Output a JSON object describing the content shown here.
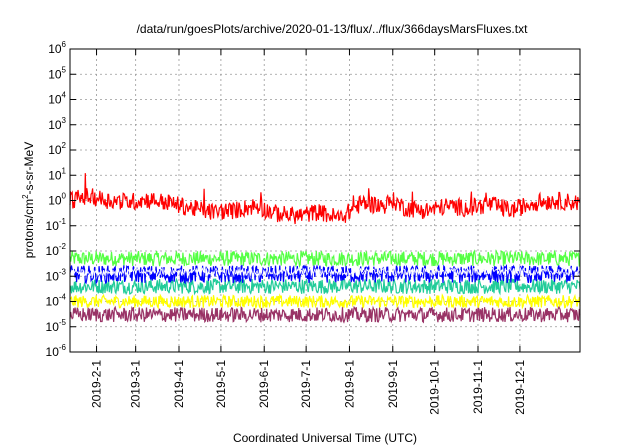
{
  "chart_data": {
    "type": "line",
    "title": "/data/run/goesPlots/archive/2020-01-13/flux/../flux/366daysMarsFluxes.txt",
    "xlabel": "Coordinated Universal Time (UTC)",
    "ylabel_pre": "protons/cm",
    "ylabel_sup": "2",
    "ylabel_post": "-s-sr-MeV",
    "y_scale": "log",
    "ylim": [
      1e-06,
      1000000.0
    ],
    "xlim": [
      "2019-01-13",
      "2020-01-13"
    ],
    "grid": true,
    "y_ticks": [
      {
        "base": "10",
        "exp": "-6",
        "value": 1e-06
      },
      {
        "base": "10",
        "exp": "-5",
        "value": 1e-05
      },
      {
        "base": "10",
        "exp": "-4",
        "value": 0.0001
      },
      {
        "base": "10",
        "exp": "-3",
        "value": 0.001
      },
      {
        "base": "10",
        "exp": "-2",
        "value": 0.01
      },
      {
        "base": "10",
        "exp": "-1",
        "value": 0.1
      },
      {
        "base": "10",
        "exp": "0",
        "value": 1
      },
      {
        "base": "10",
        "exp": "1",
        "value": 10.0
      },
      {
        "base": "10",
        "exp": "2",
        "value": 100.0
      },
      {
        "base": "10",
        "exp": "3",
        "value": 1000.0
      },
      {
        "base": "10",
        "exp": "4",
        "value": 10000.0
      },
      {
        "base": "10",
        "exp": "5",
        "value": 100000.0
      },
      {
        "base": "10",
        "exp": "6",
        "value": 1000000.0
      }
    ],
    "x_ticks": [
      {
        "label": "2019-2-1",
        "date": "2019-02-01"
      },
      {
        "label": "2019-3-1",
        "date": "2019-03-01"
      },
      {
        "label": "2019-4-1",
        "date": "2019-04-01"
      },
      {
        "label": "2019-5-1",
        "date": "2019-05-01"
      },
      {
        "label": "2019-6-1",
        "date": "2019-06-01"
      },
      {
        "label": "2019-7-1",
        "date": "2019-07-01"
      },
      {
        "label": "2019-8-1",
        "date": "2019-08-01"
      },
      {
        "label": "2019-9-1",
        "date": "2019-09-01"
      },
      {
        "label": "2019-10-1",
        "date": "2019-10-01"
      },
      {
        "label": "2019-11-1",
        "date": "2019-11-01"
      },
      {
        "label": "2019-12-1",
        "date": "2019-12-01"
      }
    ],
    "series": [
      {
        "color": "#55ff44",
        "x": [
          "2019-01-13",
          "2019-03-01",
          "2019-05-01",
          "2019-07-01",
          "2019-09-01",
          "2019-11-01",
          "2020-01-13"
        ],
        "y": [
          0.005,
          0.005,
          0.005,
          0.005,
          0.005,
          0.005,
          0.005
        ]
      },
      {
        "color": "#22cc99",
        "x": [
          "2019-01-13",
          "2019-03-01",
          "2019-05-01",
          "2019-07-01",
          "2019-09-01",
          "2019-11-01",
          "2020-01-13"
        ],
        "y": [
          0.0004,
          0.0004,
          0.0004,
          0.0004,
          0.0004,
          0.0004,
          0.0004
        ]
      },
      {
        "color": "#ffff00",
        "x": [
          "2019-01-13",
          "2019-03-01",
          "2019-05-01",
          "2019-07-01",
          "2019-09-01",
          "2019-11-01",
          "2020-01-13"
        ],
        "y": [
          0.0001,
          0.0001,
          0.0001,
          0.0001,
          0.0001,
          0.0001,
          0.0001
        ]
      },
      {
        "color": "#0000ff",
        "x": [
          "2019-01-13",
          "2019-03-01",
          "2019-05-01",
          "2019-07-01",
          "2019-09-01",
          "2019-11-01",
          "2020-01-13"
        ],
        "y": [
          0.0012,
          0.0012,
          0.0012,
          0.0012,
          0.0012,
          0.0012,
          0.0012
        ]
      },
      {
        "color": "#ffffff",
        "x": [
          "2019-01-13",
          "2019-03-01",
          "2019-05-01",
          "2019-07-01",
          "2019-09-01",
          "2019-11-01",
          "2020-01-13"
        ],
        "y": [
          0.0015,
          0.0015,
          0.0015,
          0.0015,
          0.0015,
          0.0015,
          0.0015
        ]
      },
      {
        "color": "#993366",
        "x": [
          "2019-01-13",
          "2019-03-01",
          "2019-05-01",
          "2019-07-01",
          "2019-09-01",
          "2019-11-01",
          "2020-01-13"
        ],
        "y": [
          3e-05,
          3e-05,
          3e-05,
          3e-05,
          3e-05,
          3e-05,
          3e-05
        ]
      },
      {
        "color": "#ff0000",
        "x": [
          "2019-01-13",
          "2019-01-25",
          "2019-02-10",
          "2019-02-25",
          "2019-03-10",
          "2019-03-25",
          "2019-04-10",
          "2019-04-25",
          "2019-05-10",
          "2019-05-25",
          "2019-06-10",
          "2019-06-25",
          "2019-07-10",
          "2019-07-25",
          "2019-08-10",
          "2019-08-25",
          "2019-09-01",
          "2019-09-10",
          "2019-09-25",
          "2019-10-10",
          "2019-10-25",
          "2019-11-10",
          "2019-11-25",
          "2019-12-10",
          "2019-12-25",
          "2020-01-13"
        ],
        "y": [
          1.0,
          1.5,
          1.0,
          0.9,
          1.1,
          0.8,
          0.5,
          0.35,
          0.4,
          0.6,
          0.3,
          0.25,
          0.35,
          0.2,
          0.8,
          0.6,
          1.0,
          0.5,
          0.4,
          0.6,
          0.5,
          0.7,
          0.4,
          0.8,
          1.0,
          0.8
        ]
      }
    ]
  }
}
